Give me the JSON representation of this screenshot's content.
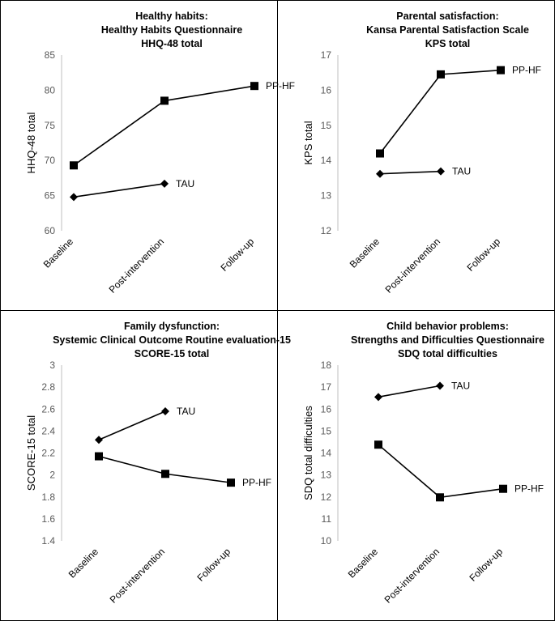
{
  "chart_data": [
    {
      "type": "line",
      "title_lines": [
        "Healthy habits:",
        "Healthy Habits Questionnaire",
        "HHQ-48 total"
      ],
      "ylabel": "HHQ-48 total",
      "categories": [
        "Baseline",
        "Post-intervention",
        "Follow-up"
      ],
      "ylim": [
        60,
        85
      ],
      "yticks": [
        60,
        65,
        70,
        75,
        80,
        85
      ],
      "series": [
        {
          "name": "PP-HF",
          "marker": "square",
          "values": [
            69.3,
            78.5,
            80.6
          ]
        },
        {
          "name": "TAU",
          "marker": "diamond",
          "values": [
            64.8,
            66.7,
            null
          ]
        }
      ]
    },
    {
      "type": "line",
      "title_lines": [
        "Parental satisfaction:",
        "Kansa Parental Satisfaction Scale",
        "KPS total"
      ],
      "ylabel": "KPS total",
      "categories": [
        "Baseline",
        "Post-intervention",
        "Follow-up"
      ],
      "ylim": [
        12,
        17
      ],
      "yticks": [
        12,
        13,
        14,
        15,
        16,
        17
      ],
      "series": [
        {
          "name": "PP-HF",
          "marker": "square",
          "values": [
            14.2,
            16.45,
            16.57
          ]
        },
        {
          "name": "TAU",
          "marker": "diamond",
          "values": [
            13.62,
            13.69,
            null
          ]
        }
      ]
    },
    {
      "type": "line",
      "title_lines": [
        "Family dysfunction:",
        "Systemic Clinical Outcome Routine evaluation-15",
        "SCORE-15 total"
      ],
      "ylabel": "SCORE-15 total",
      "categories": [
        "Baseline",
        "Post-intervention",
        "Follow-up"
      ],
      "ylim": [
        1.4,
        3.0
      ],
      "yticks": [
        "1.4",
        "1.6",
        "1.8",
        "2",
        "2.2",
        "2.4",
        "2.6",
        "2.8",
        "3"
      ],
      "series": [
        {
          "name": "PP-HF",
          "marker": "square",
          "values": [
            2.17,
            2.01,
            1.93
          ]
        },
        {
          "name": "TAU",
          "marker": "diamond",
          "values": [
            2.32,
            2.58,
            null
          ]
        }
      ]
    },
    {
      "type": "line",
      "title_lines": [
        "Child behavior problems:",
        "Strengths and Difficulties Questionnaire",
        "SDQ total difficulties"
      ],
      "ylabel": "SDQ total difficulties",
      "categories": [
        "Baseline",
        "Post-intervention",
        "Follow-up"
      ],
      "ylim": [
        10,
        18
      ],
      "yticks": [
        10,
        11,
        12,
        13,
        14,
        15,
        16,
        17,
        18
      ],
      "series": [
        {
          "name": "PP-HF",
          "marker": "square",
          "values": [
            14.38,
            11.98,
            12.37
          ]
        },
        {
          "name": "TAU",
          "marker": "diamond",
          "values": [
            16.55,
            17.06,
            null
          ]
        }
      ]
    }
  ]
}
